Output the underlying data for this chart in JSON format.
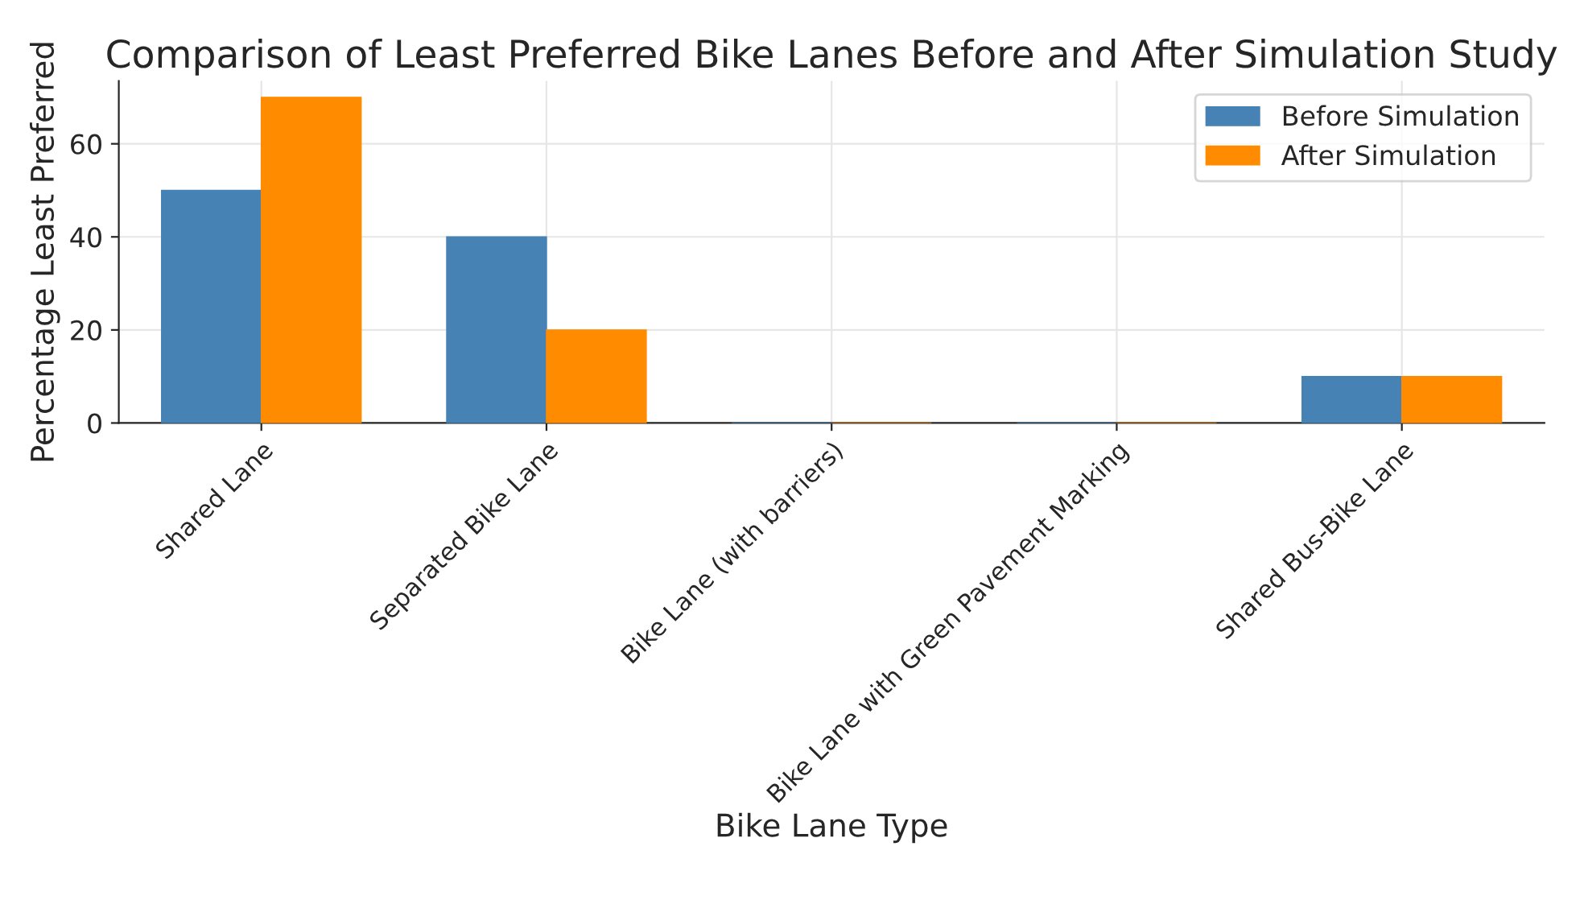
{
  "chart_data": {
    "type": "bar",
    "title": "Comparison of Least Preferred Bike Lanes Before and After Simulation Study",
    "xlabel": "Bike Lane Type",
    "ylabel": "Percentage Least Preferred",
    "categories": [
      "Shared Lane",
      "Separated Bike Lane",
      "Bike Lane (with barriers)",
      "Bike Lane with Green Pavement Marking",
      "Shared Bus-Bike Lane"
    ],
    "series": [
      {
        "name": "Before Simulation",
        "color": "#4682b4",
        "values": [
          50,
          40,
          0,
          0,
          10
        ]
      },
      {
        "name": "After Simulation",
        "color": "#ff8c00",
        "values": [
          70,
          20,
          0,
          0,
          10
        ]
      }
    ],
    "ylim": [
      0,
      73.5
    ],
    "yticks": [
      0,
      20,
      40,
      60
    ],
    "grid": true,
    "legend": "top right"
  }
}
